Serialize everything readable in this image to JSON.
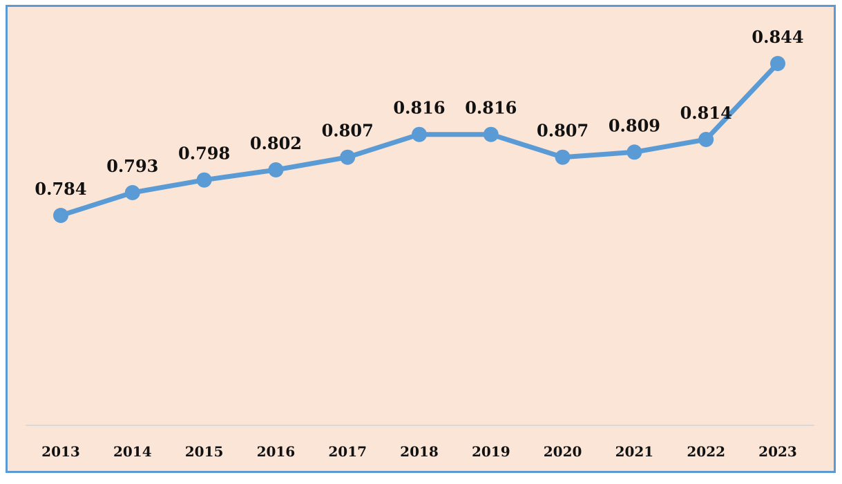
{
  "colors": {
    "background": "#fbe5d6",
    "border": "#5b9bd5",
    "line": "#5b9bd5",
    "marker": "#5b9bd5",
    "axis": "#d9d9d9"
  },
  "chart_data": {
    "type": "line",
    "categories": [
      "2013",
      "2014",
      "2015",
      "2016",
      "2017",
      "2018",
      "2019",
      "2020",
      "2021",
      "2022",
      "2023"
    ],
    "series": [
      {
        "values": [
          0.784,
          0.793,
          0.798,
          0.802,
          0.807,
          0.816,
          0.816,
          0.807,
          0.809,
          0.814,
          0.844
        ],
        "data_labels": [
          "0.784",
          "0.793",
          "0.798",
          "0.802",
          "0.807",
          "0.816",
          "0.816",
          "0.807",
          "0.809",
          "0.814",
          "0.844"
        ]
      }
    ],
    "title": "",
    "xlabel": "",
    "ylabel": "",
    "y_axis_visible": false,
    "grid": false,
    "legend": "none",
    "markers": true
  }
}
